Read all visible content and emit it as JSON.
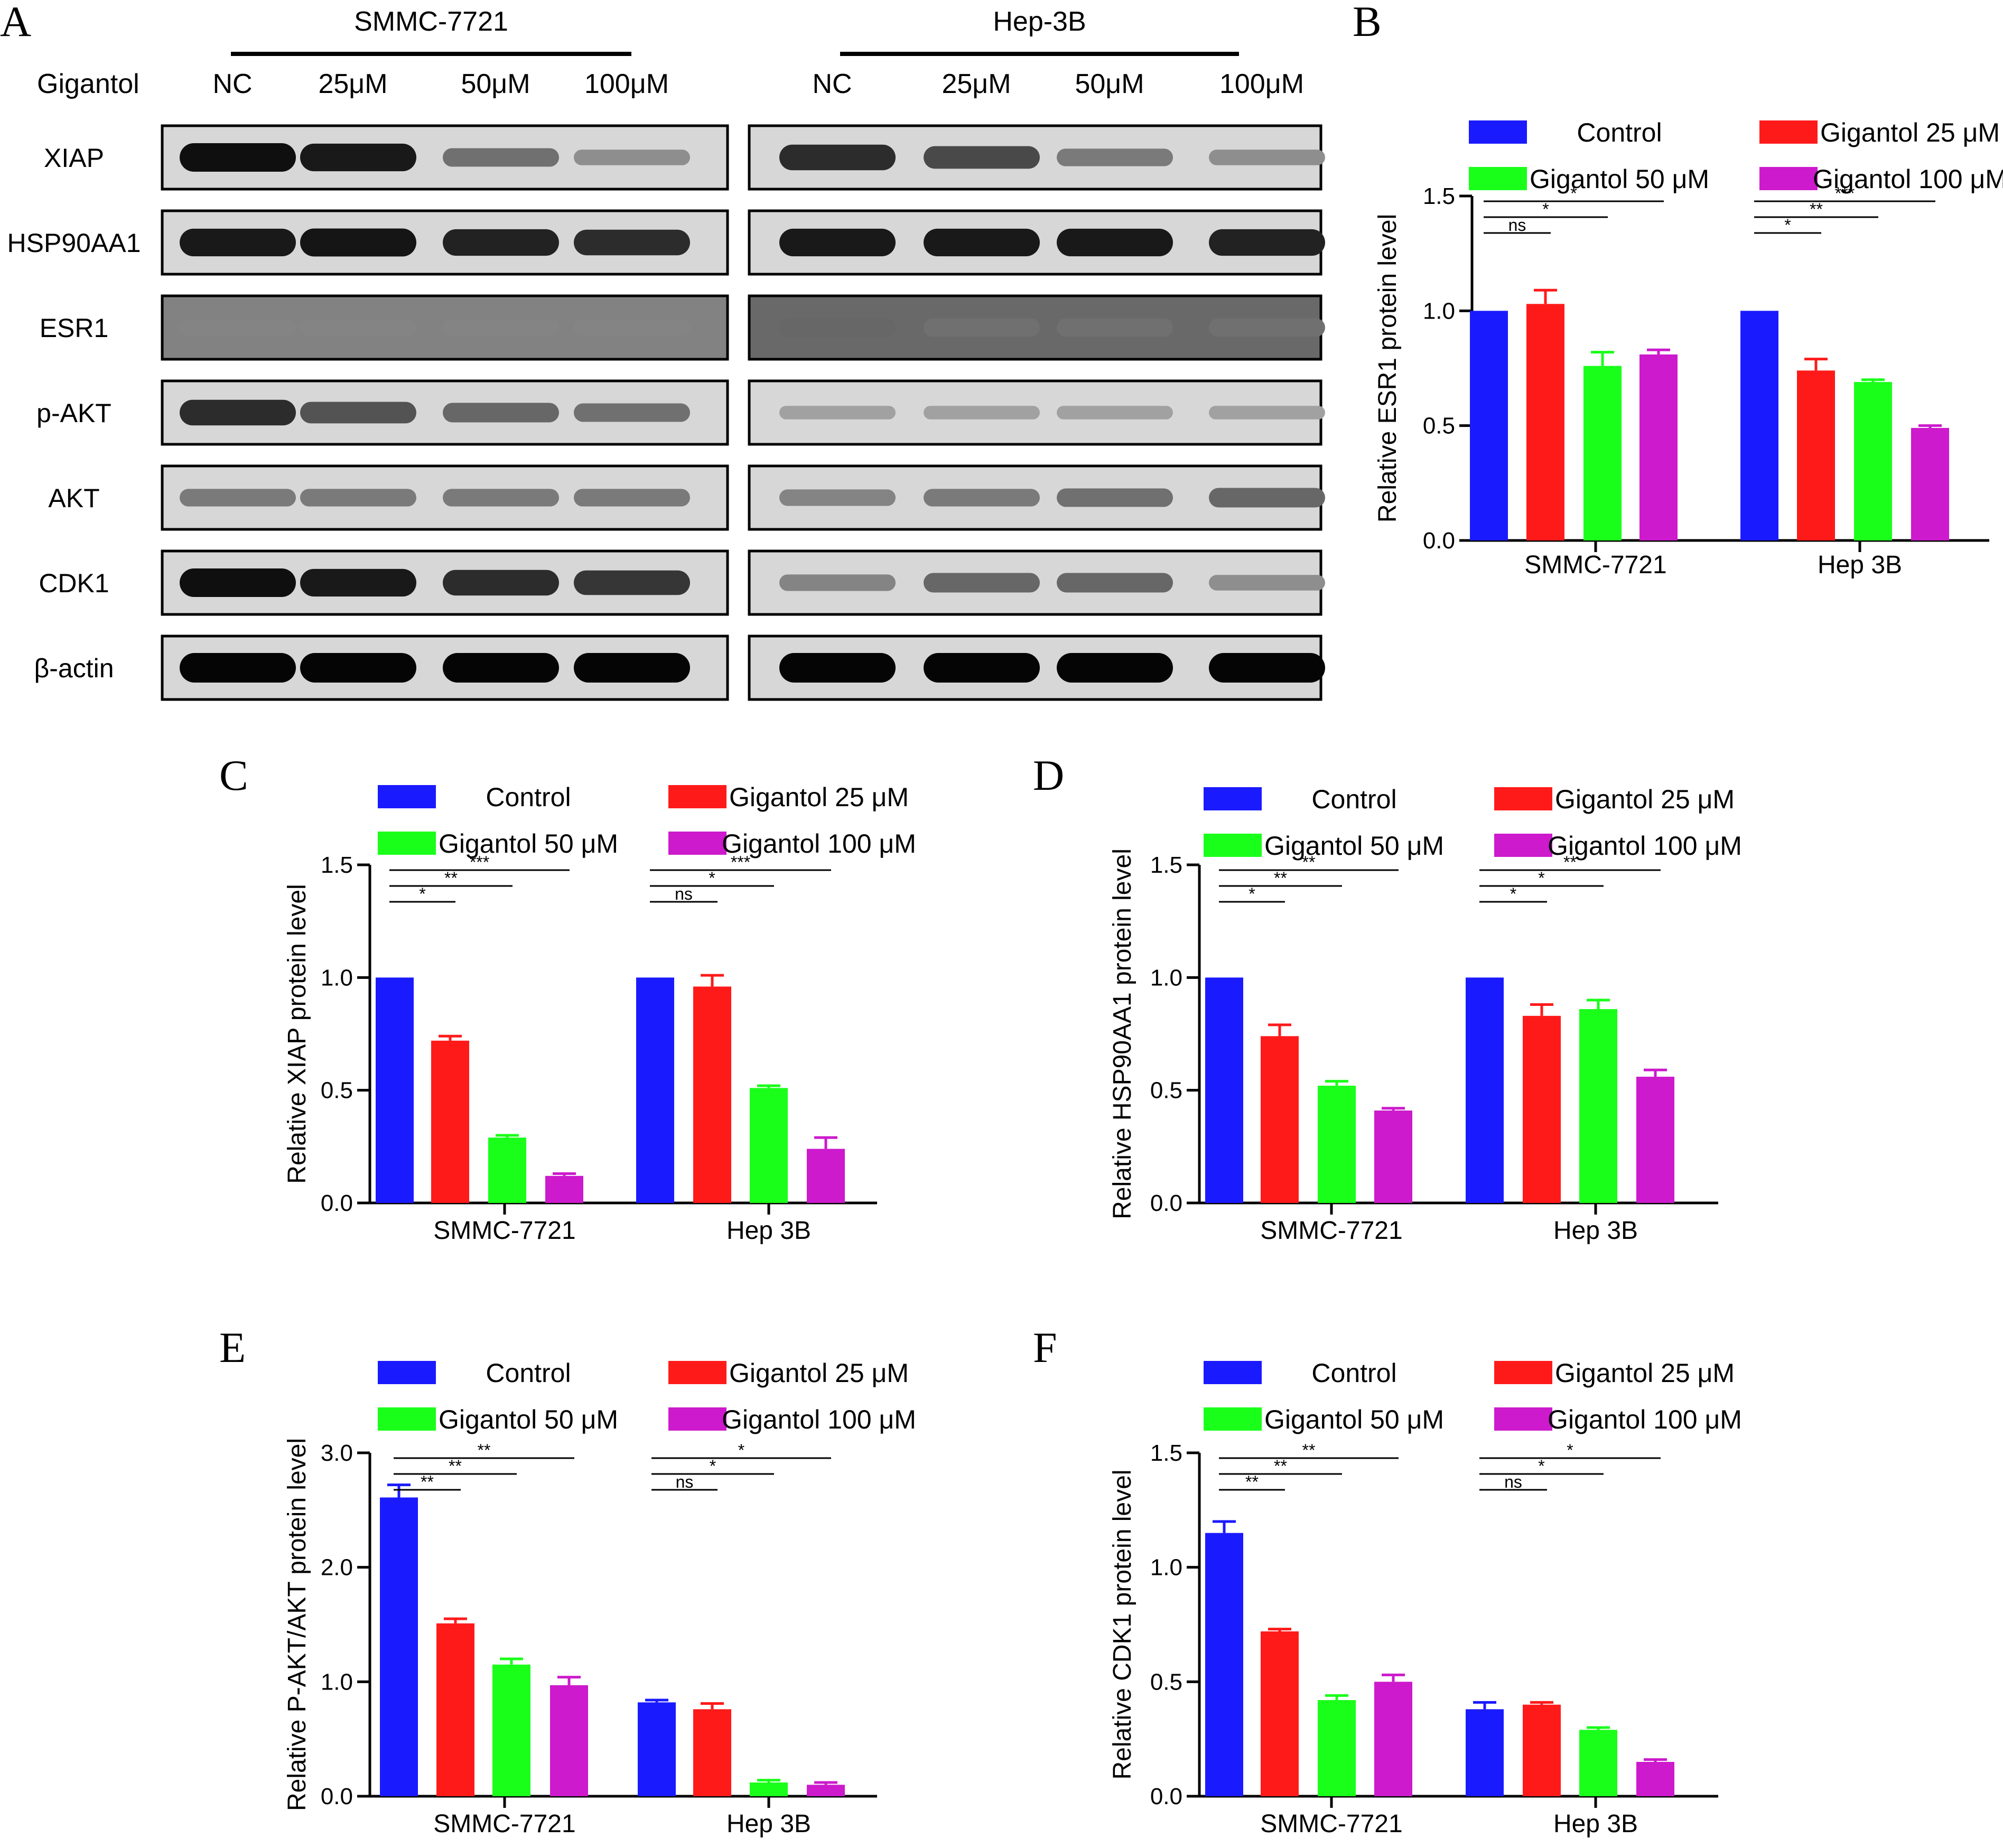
{
  "figure": {
    "panel_A": {
      "letter": "A",
      "treatment_label": "Gigantol",
      "cell_lines": [
        "SMMC-7721",
        "Hep-3B"
      ],
      "doses": [
        "NC",
        "25μM",
        "50μM",
        "100μM"
      ],
      "proteins": [
        {
          "name": "XIAP",
          "intensity": [
            [
              0.95,
              0.9,
              0.45,
              0.3
            ],
            [
              0.8,
              0.65,
              0.4,
              0.3
            ]
          ]
        },
        {
          "name": "HSP90AA1",
          "intensity": [
            [
              0.9,
              0.92,
              0.85,
              0.8
            ],
            [
              0.9,
              0.9,
              0.9,
              0.85
            ]
          ]
        },
        {
          "name": "ESR1",
          "intensity": [
            [
              0.35,
              0.35,
              0.35,
              0.35
            ],
            [
              0.5,
              0.45,
              0.45,
              0.45
            ]
          ]
        },
        {
          "name": "p-AKT",
          "intensity": [
            [
              0.8,
              0.6,
              0.5,
              0.45
            ],
            [
              0.2,
              0.2,
              0.2,
              0.2
            ]
          ]
        },
        {
          "name": "AKT",
          "intensity": [
            [
              0.4,
              0.4,
              0.4,
              0.4
            ],
            [
              0.35,
              0.4,
              0.45,
              0.5
            ]
          ]
        },
        {
          "name": "CDK1",
          "intensity": [
            [
              0.95,
              0.9,
              0.8,
              0.75
            ],
            [
              0.35,
              0.5,
              0.5,
              0.3
            ]
          ]
        },
        {
          "name": "β-actin",
          "intensity": [
            [
              1.0,
              1.0,
              1.0,
              1.0
            ],
            [
              1.0,
              1.0,
              1.0,
              1.0
            ]
          ]
        }
      ]
    },
    "legend": [
      "Control",
      "Gigantol 25 μM",
      "Gigantol 50 μM",
      "Gigantol 100 μM"
    ],
    "colors": [
      "#1a1aff",
      "#ff1a1a",
      "#1aff1a",
      "#cc1acc"
    ]
  },
  "chart_data": [
    {
      "panel": "B",
      "type": "bar",
      "ylabel": "Relative ESR1 protein level",
      "categories": [
        "SMMC-7721",
        "Hep 3B"
      ],
      "ylim": [
        0,
        1.5
      ],
      "yticks": [
        "0.0",
        "0.5",
        "1.0",
        "1.5"
      ],
      "ytick_values": [
        0,
        0.5,
        1.0,
        1.5
      ],
      "series": [
        {
          "name": "Control",
          "values": [
            1.0,
            1.0
          ],
          "errors": [
            0,
            0
          ]
        },
        {
          "name": "Gigantol 25 μM",
          "values": [
            1.03,
            0.74
          ],
          "errors": [
            0.06,
            0.05
          ]
        },
        {
          "name": "Gigantol 50 μM",
          "values": [
            0.76,
            0.69
          ],
          "errors": [
            0.06,
            0.01
          ]
        },
        {
          "name": "Gigantol 100 μM",
          "values": [
            0.81,
            0.49
          ],
          "errors": [
            0.02,
            0.01
          ]
        }
      ],
      "significance": [
        [
          "*",
          "*",
          "ns"
        ],
        [
          "***",
          "**",
          "*"
        ]
      ]
    },
    {
      "panel": "C",
      "type": "bar",
      "ylabel": "Relative XIAP protein level",
      "categories": [
        "SMMC-7721",
        "Hep 3B"
      ],
      "ylim": [
        0,
        1.5
      ],
      "yticks": [
        "0.0",
        "0.5",
        "1.0",
        "1.5"
      ],
      "ytick_values": [
        0,
        0.5,
        1.0,
        1.5
      ],
      "series": [
        {
          "name": "Control",
          "values": [
            1.0,
            1.0
          ],
          "errors": [
            0,
            0
          ]
        },
        {
          "name": "Gigantol 25 μM",
          "values": [
            0.72,
            0.96
          ],
          "errors": [
            0.02,
            0.05
          ]
        },
        {
          "name": "Gigantol 50 μM",
          "values": [
            0.29,
            0.51
          ],
          "errors": [
            0.01,
            0.01
          ]
        },
        {
          "name": "Gigantol 100 μM",
          "values": [
            0.12,
            0.24
          ],
          "errors": [
            0.01,
            0.05
          ]
        }
      ],
      "significance": [
        [
          "***",
          "**",
          "*"
        ],
        [
          "***",
          "*",
          "ns"
        ]
      ]
    },
    {
      "panel": "D",
      "type": "bar",
      "ylabel": "Relative HSP90AA1 protein level",
      "categories": [
        "SMMC-7721",
        "Hep 3B"
      ],
      "ylim": [
        0,
        1.5
      ],
      "yticks": [
        "0.0",
        "0.5",
        "1.0",
        "1.5"
      ],
      "ytick_values": [
        0,
        0.5,
        1.0,
        1.5
      ],
      "series": [
        {
          "name": "Control",
          "values": [
            1.0,
            1.0
          ],
          "errors": [
            0,
            0
          ]
        },
        {
          "name": "Gigantol 25 μM",
          "values": [
            0.74,
            0.83
          ],
          "errors": [
            0.05,
            0.05
          ]
        },
        {
          "name": "Gigantol 50 μM",
          "values": [
            0.52,
            0.86
          ],
          "errors": [
            0.02,
            0.04
          ]
        },
        {
          "name": "Gigantol 100 μM",
          "values": [
            0.41,
            0.56
          ],
          "errors": [
            0.01,
            0.03
          ]
        }
      ],
      "significance": [
        [
          "**",
          "**",
          "*"
        ],
        [
          "**",
          "*",
          "*"
        ]
      ]
    },
    {
      "panel": "E",
      "type": "bar",
      "ylabel": "Relative P-AKT/AKT protein level",
      "categories": [
        "SMMC-7721",
        "Hep 3B"
      ],
      "ylim": [
        0,
        3.0
      ],
      "yticks": [
        "0.0",
        "1.0",
        "2.0",
        "3.0"
      ],
      "ytick_values": [
        0,
        1.0,
        2.0,
        3.0
      ],
      "series": [
        {
          "name": "Control",
          "values": [
            2.61,
            0.82
          ],
          "errors": [
            0.11,
            0.02
          ]
        },
        {
          "name": "Gigantol 25 μM",
          "values": [
            1.51,
            0.76
          ],
          "errors": [
            0.04,
            0.05
          ]
        },
        {
          "name": "Gigantol 50 μM",
          "values": [
            1.15,
            0.12
          ],
          "errors": [
            0.05,
            0.02
          ]
        },
        {
          "name": "Gigantol 100 μM",
          "values": [
            0.97,
            0.1
          ],
          "errors": [
            0.07,
            0.02
          ]
        }
      ],
      "significance": [
        [
          "**",
          "**",
          "**"
        ],
        [
          "*",
          "*",
          "ns"
        ]
      ]
    },
    {
      "panel": "F",
      "type": "bar",
      "ylabel": "Relative CDK1 protein level",
      "categories": [
        "SMMC-7721",
        "Hep 3B"
      ],
      "ylim": [
        0,
        1.5
      ],
      "yticks": [
        "0.0",
        "0.5",
        "1.0",
        "1.5"
      ],
      "ytick_values": [
        0,
        0.5,
        1.0,
        1.5
      ],
      "series": [
        {
          "name": "Control",
          "values": [
            1.15,
            0.38
          ],
          "errors": [
            0.05,
            0.03
          ]
        },
        {
          "name": "Gigantol 25 μM",
          "values": [
            0.72,
            0.4
          ],
          "errors": [
            0.01,
            0.01
          ]
        },
        {
          "name": "Gigantol 50 μM",
          "values": [
            0.42,
            0.29
          ],
          "errors": [
            0.02,
            0.01
          ]
        },
        {
          "name": "Gigantol 100 μM",
          "values": [
            0.5,
            0.15
          ],
          "errors": [
            0.03,
            0.01
          ]
        }
      ],
      "significance": [
        [
          "**",
          "**",
          "**"
        ],
        [
          "*",
          "*",
          "ns"
        ]
      ]
    }
  ]
}
